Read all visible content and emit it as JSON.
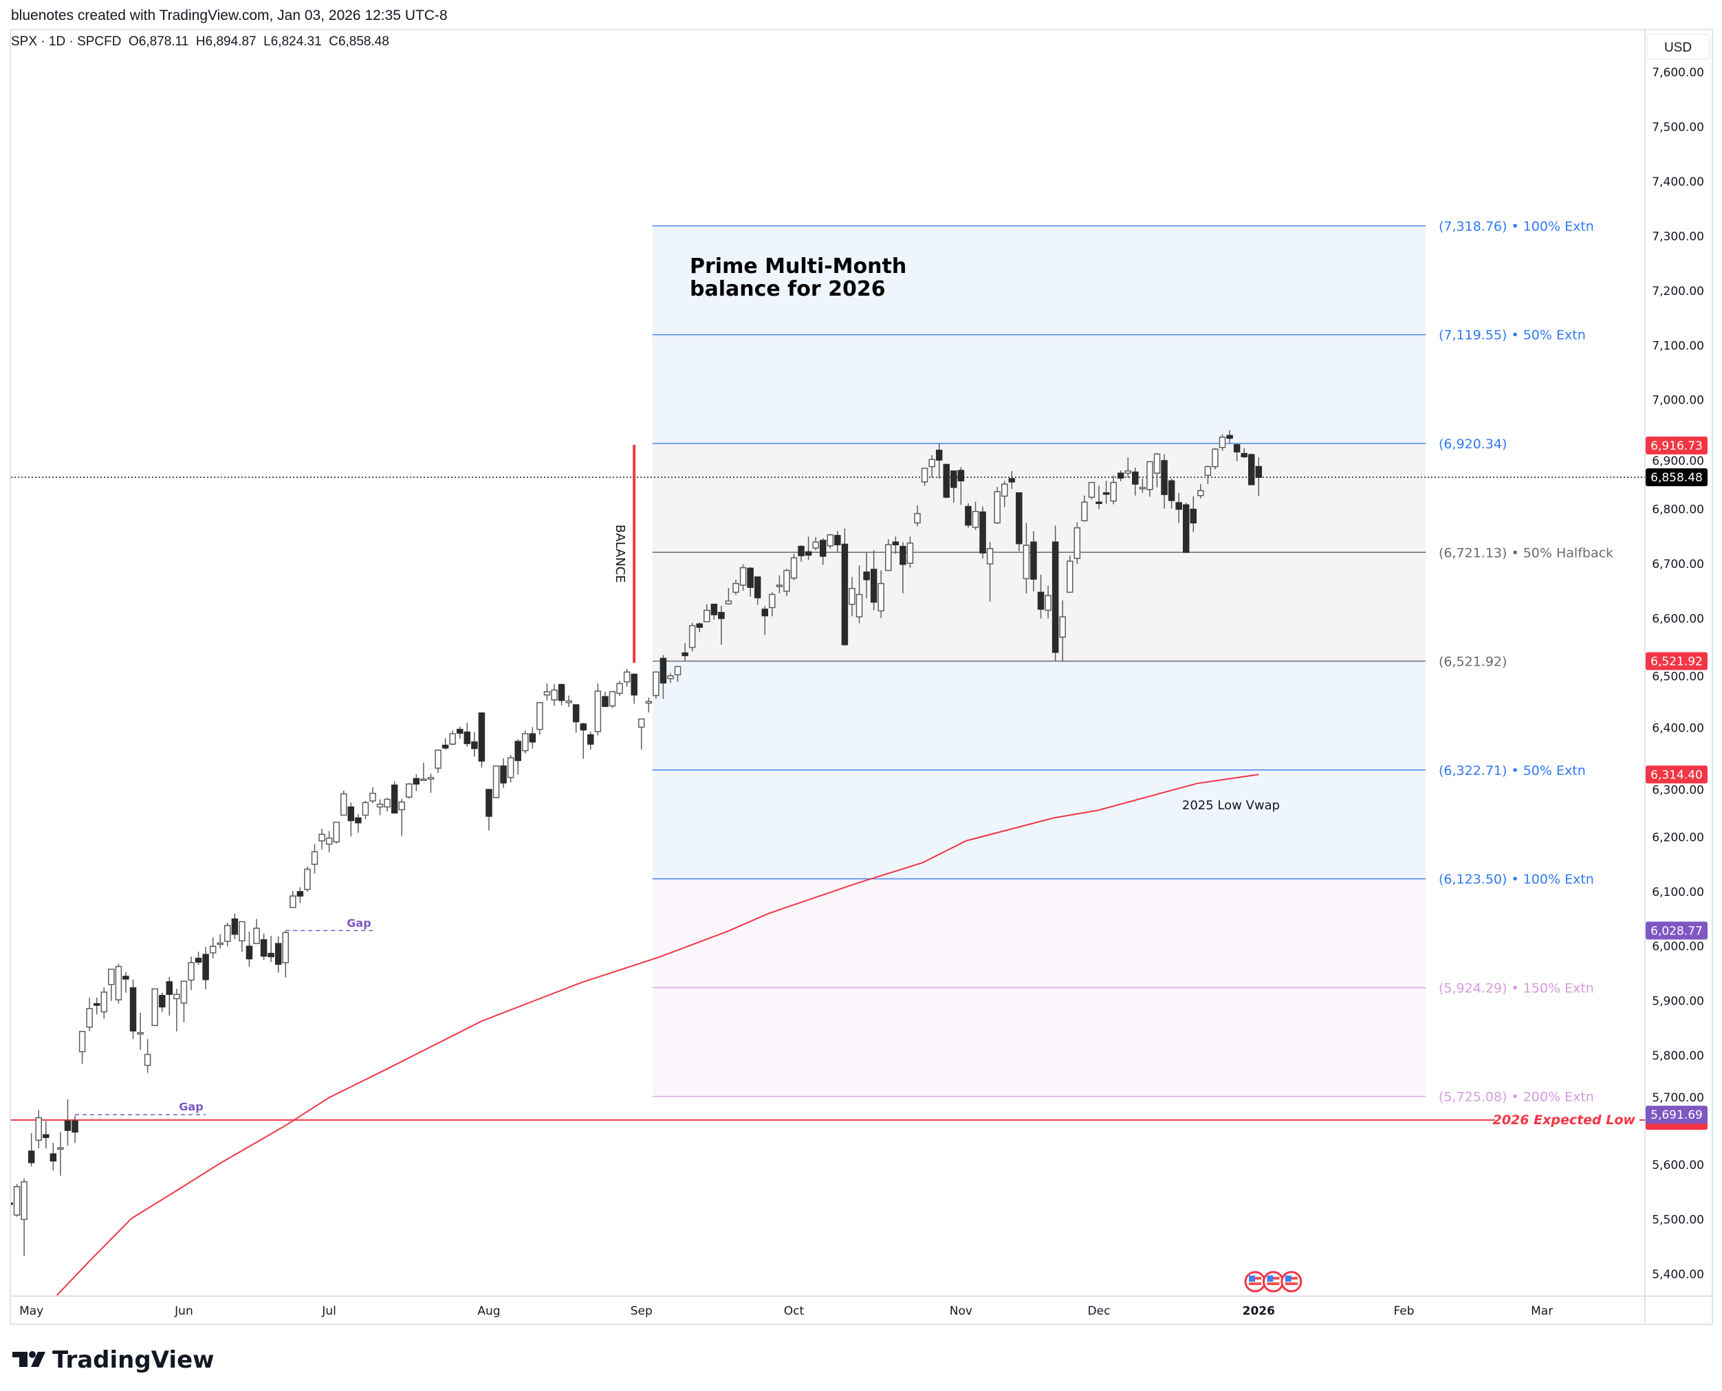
{
  "header": {
    "attribution": "bluenotes created with TradingView.com, Jan 03, 2026 12:35 UTC-8",
    "symbol_line": "SPX · 1D · SPCFD  O6,878.11  H6,894.87  L6,824.31  C6,858.48",
    "currency": "USD"
  },
  "annotations": {
    "title_line1": "Prime Multi-Month",
    "title_line2": "balance for 2026",
    "balance": "BALANCE",
    "gap_upper": "Gap",
    "gap_lower": "Gap",
    "vwap_label": "2025 Low Vwap",
    "expected_low": "2026 Expected Low"
  },
  "logo": {
    "text": "TradingView"
  },
  "colors": {
    "bull_fill": "#ffffff",
    "bear_fill": "#2b2b2b",
    "wick": "#5d5d5d",
    "blue": "#3179f5",
    "grey": "#6a6a6a",
    "lavender": "#d69be0",
    "red": "#f23645",
    "purple": "#7e57c2"
  },
  "chart_data": {
    "type": "candlestick",
    "title": "SPX · 1D · SPCFD",
    "start_date": "2025-04-28",
    "ylim": [
      5400,
      7600
    ],
    "y_ticks": [
      7600,
      7500,
      7400,
      7300,
      7200,
      7100,
      7000,
      6900,
      6800,
      6700,
      6600,
      6500,
      6400,
      6300,
      6200,
      6100,
      6000,
      5900,
      5800,
      5700,
      5600,
      5500,
      5400
    ],
    "y_tick_labels": [
      "7,600.00",
      "7,500.00",
      "7,400.00",
      "7,300.00",
      "7,200.00",
      "7,100.00",
      "7,000.00",
      "6,900.00",
      "6,800.00",
      "6,700.00",
      "6,600.00",
      "6,500.00",
      "6,400.00",
      "6,300.00",
      "6,200.00",
      "6,100.00",
      "6,000.00",
      "5,900.00",
      "5,800.00",
      "5,700.00",
      "5,600.00",
      "5,500.00",
      "5,400.00"
    ],
    "x_labels": [
      {
        "label": "May",
        "index": 3
      },
      {
        "label": "Jun",
        "index": 24
      },
      {
        "label": "Jul",
        "index": 44
      },
      {
        "label": "Aug",
        "index": 66
      },
      {
        "label": "Sep",
        "index": 87
      },
      {
        "label": "Oct",
        "index": 108
      },
      {
        "label": "Nov",
        "index": 131
      },
      {
        "label": "Dec",
        "index": 150
      },
      {
        "label": "2026",
        "index": 172,
        "bold": true
      },
      {
        "label": "Feb",
        "index": 192
      },
      {
        "label": "Mar",
        "index": 211
      }
    ],
    "candles_ohlc": [
      [
        5530,
        5555,
        5470,
        5528
      ],
      [
        5508,
        5565,
        5505,
        5560
      ],
      [
        5500,
        5575,
        5433,
        5569
      ],
      [
        5625,
        5658,
        5597,
        5604
      ],
      [
        5645,
        5700,
        5630,
        5686
      ],
      [
        5655,
        5680,
        5630,
        5650
      ],
      [
        5620,
        5640,
        5590,
        5607
      ],
      [
        5630,
        5660,
        5580,
        5631
      ],
      [
        5680,
        5720,
        5635,
        5663
      ],
      [
        5680,
        5690,
        5640,
        5660
      ],
      [
        5807,
        5845,
        5785,
        5844
      ],
      [
        5852,
        5906,
        5845,
        5886
      ],
      [
        5895,
        5906,
        5875,
        5892
      ],
      [
        5880,
        5925,
        5867,
        5916
      ],
      [
        5930,
        5958,
        5900,
        5958
      ],
      [
        5902,
        5968,
        5895,
        5963
      ],
      [
        5945,
        5953,
        5915,
        5940
      ],
      [
        5924,
        5939,
        5830,
        5845
      ],
      [
        5841,
        5878,
        5810,
        5842
      ],
      [
        5782,
        5830,
        5768,
        5802
      ],
      [
        5855,
        5922,
        5855,
        5922
      ],
      [
        5910,
        5915,
        5880,
        5889
      ],
      [
        5935,
        5944,
        5873,
        5912
      ],
      [
        5904,
        5922,
        5844,
        5912
      ],
      [
        5896,
        5937,
        5861,
        5936
      ],
      [
        5938,
        5981,
        5920,
        5970
      ],
      [
        5978,
        5990,
        5966,
        5971
      ],
      [
        5985,
        5999,
        5921,
        5939
      ],
      [
        5988,
        6016,
        5978,
        6000
      ],
      [
        6005,
        6022,
        5996,
        6006
      ],
      [
        6009,
        6043,
        6000,
        6038
      ],
      [
        6050,
        6060,
        6013,
        6022
      ],
      [
        6010,
        6045,
        5990,
        6045
      ],
      [
        6000,
        6027,
        5963,
        5977
      ],
      [
        6005,
        6050,
        6004,
        6033
      ],
      [
        6012,
        6023,
        5975,
        5982
      ],
      [
        5987,
        6019,
        5971,
        5981
      ],
      [
        6005,
        6018,
        5952,
        5967
      ],
      [
        5970,
        6028,
        5943,
        6025
      ],
      [
        6071,
        6101,
        6070,
        6092
      ],
      [
        6100,
        6108,
        6079,
        6092
      ],
      [
        6104,
        6146,
        6100,
        6141
      ],
      [
        6150,
        6187,
        6133,
        6173
      ],
      [
        6193,
        6215,
        6177,
        6205
      ],
      [
        6187,
        6211,
        6172,
        6198
      ],
      [
        6191,
        6227,
        6188,
        6227
      ],
      [
        6240,
        6285,
        6240,
        6279
      ],
      [
        6255,
        6263,
        6201,
        6230
      ],
      [
        6235,
        6242,
        6208,
        6226
      ],
      [
        6240,
        6266,
        6233,
        6263
      ],
      [
        6266,
        6291,
        6262,
        6280
      ],
      [
        6255,
        6269,
        6240,
        6260
      ],
      [
        6255,
        6272,
        6247,
        6269
      ],
      [
        6295,
        6302,
        6243,
        6244
      ],
      [
        6250,
        6270,
        6202,
        6264
      ],
      [
        6273,
        6299,
        6270,
        6297
      ],
      [
        6307,
        6315,
        6284,
        6297
      ],
      [
        6305,
        6336,
        6303,
        6306
      ],
      [
        6306,
        6316,
        6281,
        6309
      ],
      [
        6326,
        6360,
        6317,
        6359
      ],
      [
        6368,
        6381,
        6360,
        6363
      ],
      [
        6370,
        6395,
        6368,
        6389
      ],
      [
        6397,
        6402,
        6380,
        6390
      ],
      [
        6392,
        6409,
        6365,
        6371
      ],
      [
        6374,
        6392,
        6347,
        6362
      ],
      [
        6427,
        6428,
        6327,
        6339
      ],
      [
        6287,
        6288,
        6212,
        6238
      ],
      [
        6272,
        6330,
        6271,
        6330
      ],
      [
        6330,
        6344,
        6290,
        6299
      ],
      [
        6309,
        6350,
        6300,
        6345
      ],
      [
        6375,
        6379,
        6314,
        6340
      ],
      [
        6358,
        6395,
        6353,
        6389
      ],
      [
        6389,
        6401,
        6362,
        6374
      ],
      [
        6397,
        6446,
        6387,
        6446
      ],
      [
        6460,
        6481,
        6450,
        6466
      ],
      [
        6451,
        6480,
        6440,
        6469
      ],
      [
        6479,
        6481,
        6441,
        6450
      ],
      [
        6446,
        6459,
        6438,
        6449
      ],
      [
        6442,
        6443,
        6391,
        6411
      ],
      [
        6407,
        6409,
        6343,
        6396
      ],
      [
        6387,
        6393,
        6360,
        6370
      ],
      [
        6393,
        6481,
        6386,
        6467
      ],
      [
        6457,
        6466,
        6438,
        6439
      ],
      [
        6440,
        6467,
        6436,
        6466
      ],
      [
        6463,
        6486,
        6458,
        6481
      ],
      [
        6484,
        6508,
        6475,
        6502
      ],
      [
        6498,
        6499,
        6444,
        6460
      ],
      [
        6401,
        6416,
        6360,
        6416
      ],
      [
        6445,
        6455,
        6428,
        6448
      ],
      [
        6459,
        6502,
        6453,
        6502
      ],
      [
        6527,
        6533,
        6453,
        6482
      ],
      [
        6490,
        6500,
        6482,
        6495
      ],
      [
        6497,
        6513,
        6484,
        6512
      ],
      [
        6537,
        6555,
        6522,
        6532
      ],
      [
        6547,
        6592,
        6540,
        6587
      ],
      [
        6590,
        6593,
        6575,
        6584
      ],
      [
        6594,
        6626,
        6593,
        6615
      ],
      [
        6626,
        6627,
        6598,
        6607
      ],
      [
        6611,
        6623,
        6552,
        6600
      ],
      [
        6627,
        6656,
        6625,
        6632
      ],
      [
        6648,
        6671,
        6643,
        6664
      ],
      [
        6661,
        6699,
        6651,
        6693
      ],
      [
        6692,
        6694,
        6640,
        6657
      ],
      [
        6676,
        6677,
        6625,
        6638
      ],
      [
        6617,
        6623,
        6570,
        6605
      ],
      [
        6620,
        6648,
        6604,
        6644
      ],
      [
        6661,
        6679,
        6646,
        6661
      ],
      [
        6650,
        6691,
        6641,
        6688
      ],
      [
        6674,
        6718,
        6670,
        6711
      ],
      [
        6732,
        6734,
        6704,
        6715
      ],
      [
        6722,
        6750,
        6707,
        6716
      ],
      [
        6729,
        6749,
        6725,
        6740
      ],
      [
        6743,
        6747,
        6698,
        6714
      ],
      [
        6733,
        6755,
        6728,
        6753
      ],
      [
        6752,
        6760,
        6720,
        6735
      ],
      [
        6736,
        6765,
        6550,
        6552
      ],
      [
        6626,
        6676,
        6604,
        6655
      ],
      [
        6603,
        6697,
        6591,
        6644
      ],
      [
        6685,
        6722,
        6637,
        6671
      ],
      [
        6690,
        6725,
        6615,
        6630
      ],
      [
        6614,
        6688,
        6601,
        6664
      ],
      [
        6688,
        6745,
        6688,
        6735
      ],
      [
        6740,
        6750,
        6718,
        6735
      ],
      [
        6732,
        6740,
        6646,
        6699
      ],
      [
        6701,
        6750,
        6693,
        6738
      ],
      [
        6775,
        6807,
        6769,
        6792
      ],
      [
        6850,
        6875,
        6843,
        6875
      ],
      [
        6878,
        6899,
        6858,
        6891
      ],
      [
        6908,
        6920,
        6856,
        6890
      ],
      [
        6882,
        6882,
        6820,
        6822
      ],
      [
        6870,
        6870,
        6812,
        6840
      ],
      [
        6871,
        6877,
        6808,
        6852
      ],
      [
        6805,
        6811,
        6766,
        6771
      ],
      [
        6767,
        6814,
        6762,
        6796
      ],
      [
        6795,
        6805,
        6710,
        6720
      ],
      [
        6700,
        6740,
        6631,
        6728
      ],
      [
        6775,
        6841,
        6773,
        6832
      ],
      [
        6824,
        6852,
        6804,
        6846
      ],
      [
        6856,
        6870,
        6837,
        6850
      ],
      [
        6830,
        6830,
        6723,
        6737
      ],
      [
        6673,
        6775,
        6646,
        6734
      ],
      [
        6740,
        6760,
        6650,
        6672
      ],
      [
        6648,
        6680,
        6600,
        6617
      ],
      [
        6615,
        6660,
        6600,
        6642
      ],
      [
        6740,
        6770,
        6522,
        6538
      ],
      [
        6566,
        6633,
        6521,
        6603
      ],
      [
        6648,
        6715,
        6648,
        6705
      ],
      [
        6710,
        6776,
        6700,
        6766
      ],
      [
        6779,
        6825,
        6777,
        6813
      ],
      [
        6822,
        6850,
        6818,
        6849
      ],
      [
        6813,
        6843,
        6800,
        6812
      ],
      [
        6830,
        6852,
        6810,
        6829
      ],
      [
        6815,
        6862,
        6809,
        6849
      ],
      [
        6866,
        6871,
        6851,
        6857
      ],
      [
        6866,
        6895,
        6858,
        6870
      ],
      [
        6868,
        6876,
        6825,
        6846
      ],
      [
        6839,
        6856,
        6830,
        6840
      ],
      [
        6836,
        6886,
        6823,
        6887
      ],
      [
        6866,
        6903,
        6840,
        6901
      ],
      [
        6889,
        6901,
        6801,
        6827
      ],
      [
        6852,
        6856,
        6801,
        6816
      ],
      [
        6812,
        6830,
        6775,
        6800
      ],
      [
        6808,
        6812,
        6720,
        6721
      ],
      [
        6800,
        6824,
        6758,
        6775
      ],
      [
        6825,
        6846,
        6820,
        6834
      ],
      [
        6862,
        6880,
        6846,
        6878
      ],
      [
        6878,
        6912,
        6873,
        6910
      ],
      [
        6913,
        6937,
        6907,
        6932
      ],
      [
        6935,
        6945,
        6921,
        6930
      ],
      [
        6918,
        6920,
        6888,
        6905
      ],
      [
        6902,
        6912,
        6894,
        6896
      ],
      [
        6900,
        6902,
        6845,
        6845
      ],
      [
        6878.11,
        6894.87,
        6824.31,
        6858.48
      ]
    ],
    "last_price": 6858.48,
    "balance_box": {
      "start_index": 89,
      "end_index": 195
    },
    "levels": [
      {
        "value": 7318.76,
        "label": "(7,318.76) • 100% Extn",
        "style": "blue"
      },
      {
        "value": 7119.55,
        "label": "(7,119.55) • 50% Extn",
        "style": "blue"
      },
      {
        "value": 6920.34,
        "label": "(6,920.34)",
        "style": "blue"
      },
      {
        "value": 6721.13,
        "label": "(6,721.13) • 50% Halfback",
        "style": "grey"
      },
      {
        "value": 6521.92,
        "label": "(6,521.92)",
        "style": "grey"
      },
      {
        "value": 6322.71,
        "label": "(6,322.71) • 50% Extn",
        "style": "blue"
      },
      {
        "value": 6123.5,
        "label": "(6,123.50) • 100% Extn",
        "style": "blue"
      },
      {
        "value": 5924.29,
        "label": "(5,924.29) • 150% Extn",
        "style": "lavender"
      },
      {
        "value": 5725.08,
        "label": "(5,725.08) • 200% Extn",
        "style": "lavender"
      }
    ],
    "zones": [
      {
        "from": 7318.76,
        "to": 6920.34,
        "fill": "#eff5fd"
      },
      {
        "from": 6920.34,
        "to": 6521.92,
        "fill": "#f4f4f4"
      },
      {
        "from": 6521.92,
        "to": 6123.5,
        "fill": "#eff5fd"
      },
      {
        "from": 6123.5,
        "to": 5725.08,
        "fill": "#fbf5fc"
      }
    ],
    "balance_marker": {
      "index": 86,
      "from": 6918,
      "to": 6519
    },
    "gaps": [
      {
        "value": 6028.77,
        "start_index": 38,
        "end_index": 50
      },
      {
        "value": 5691.69,
        "start_index": 9,
        "end_index": 27
      }
    ],
    "expected_low_value": 5682,
    "vwap_2025_low": [
      [
        6.5,
        5361
      ],
      [
        10.8,
        5421
      ],
      [
        16.8,
        5502
      ],
      [
        22.9,
        5552
      ],
      [
        28.9,
        5602
      ],
      [
        38,
        5672
      ],
      [
        44,
        5723
      ],
      [
        51.6,
        5773
      ],
      [
        65,
        5863
      ],
      [
        78.8,
        5934
      ],
      [
        89.4,
        5980
      ],
      [
        99,
        6028
      ],
      [
        104.5,
        6060
      ],
      [
        116.6,
        6115
      ],
      [
        125.7,
        6153
      ],
      [
        131.7,
        6193
      ],
      [
        143.8,
        6235
      ],
      [
        149.9,
        6249
      ],
      [
        163.5,
        6298
      ],
      [
        172,
        6314.4
      ]
    ],
    "price_badges": [
      {
        "value": 6916.73,
        "text": "6,916.73",
        "color": "#f23645"
      },
      {
        "value": 6858.48,
        "text": "6,858.48",
        "color": "#000000"
      },
      {
        "value": 6521.92,
        "text": "6,521.92",
        "color": "#f23645"
      },
      {
        "value": 6314.4,
        "text": "6,314.40",
        "color": "#f23645"
      },
      {
        "value": 6028.77,
        "text": "6,028.77",
        "color": "#7e57c2"
      },
      {
        "value": 5691.69,
        "text": "5,691.69",
        "color": "#7e57c2"
      }
    ],
    "event_icons": {
      "type": "us-flag-economic-event",
      "indices": [
        171.5,
        174,
        176.5
      ]
    }
  }
}
